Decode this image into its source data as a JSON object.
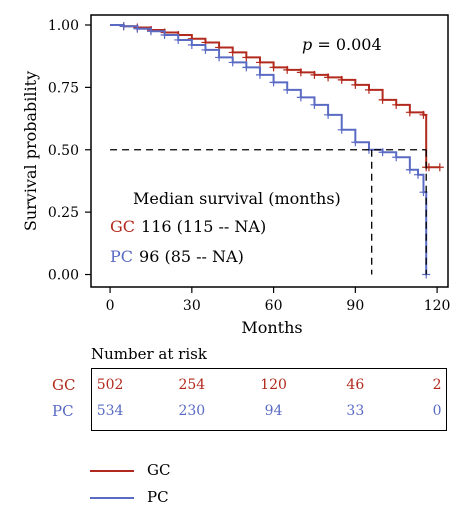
{
  "chart_data": {
    "type": "line",
    "xlabel": "Months",
    "ylabel": "Survival probability",
    "xlim": [
      -7,
      124
    ],
    "ylim": [
      -0.05,
      1.04
    ],
    "xticks": [
      "0",
      "30",
      "60",
      "90",
      "120"
    ],
    "yticks": [
      "0.00",
      "0.25",
      "0.50",
      "0.75",
      "1.00"
    ],
    "annotation_p": "p = 0.004",
    "median_line_y": 0.5,
    "series": [
      {
        "name": "GC",
        "color": "#b22a1d",
        "median": 116,
        "median_label": "116 (115 -- NA)",
        "x": [
          0,
          5,
          10,
          15,
          20,
          25,
          30,
          35,
          40,
          45,
          50,
          55,
          60,
          65,
          70,
          75,
          80,
          85,
          90,
          95,
          100,
          105,
          110,
          115,
          116,
          117,
          121
        ],
        "y": [
          1.0,
          0.995,
          0.99,
          0.98,
          0.97,
          0.96,
          0.945,
          0.93,
          0.91,
          0.89,
          0.87,
          0.85,
          0.83,
          0.82,
          0.81,
          0.8,
          0.79,
          0.78,
          0.76,
          0.74,
          0.7,
          0.68,
          0.65,
          0.64,
          0.43,
          0.43,
          0.43
        ]
      },
      {
        "name": "PC",
        "color": "#5a6bc4",
        "median": 96,
        "median_label": "96 (85 -- NA)",
        "x": [
          0,
          5,
          10,
          15,
          20,
          25,
          30,
          35,
          40,
          45,
          50,
          55,
          60,
          65,
          70,
          75,
          80,
          85,
          90,
          95,
          100,
          105,
          110,
          113,
          115,
          116
        ],
        "y": [
          1.0,
          0.995,
          0.985,
          0.975,
          0.96,
          0.94,
          0.92,
          0.9,
          0.87,
          0.85,
          0.83,
          0.8,
          0.77,
          0.74,
          0.71,
          0.68,
          0.64,
          0.58,
          0.53,
          0.5,
          0.49,
          0.47,
          0.42,
          0.4,
          0.33,
          0.0
        ]
      }
    ],
    "legend_title": "Median survival (months)",
    "risk_table": {
      "title": "Number at risk",
      "times": [
        0,
        30,
        60,
        90,
        120
      ],
      "rows": [
        {
          "group": "GC",
          "values": [
            "502",
            "254",
            "120",
            "46",
            "2"
          ]
        },
        {
          "group": "PC",
          "values": [
            "534",
            "230",
            "94",
            "33",
            "0"
          ]
        }
      ]
    }
  }
}
